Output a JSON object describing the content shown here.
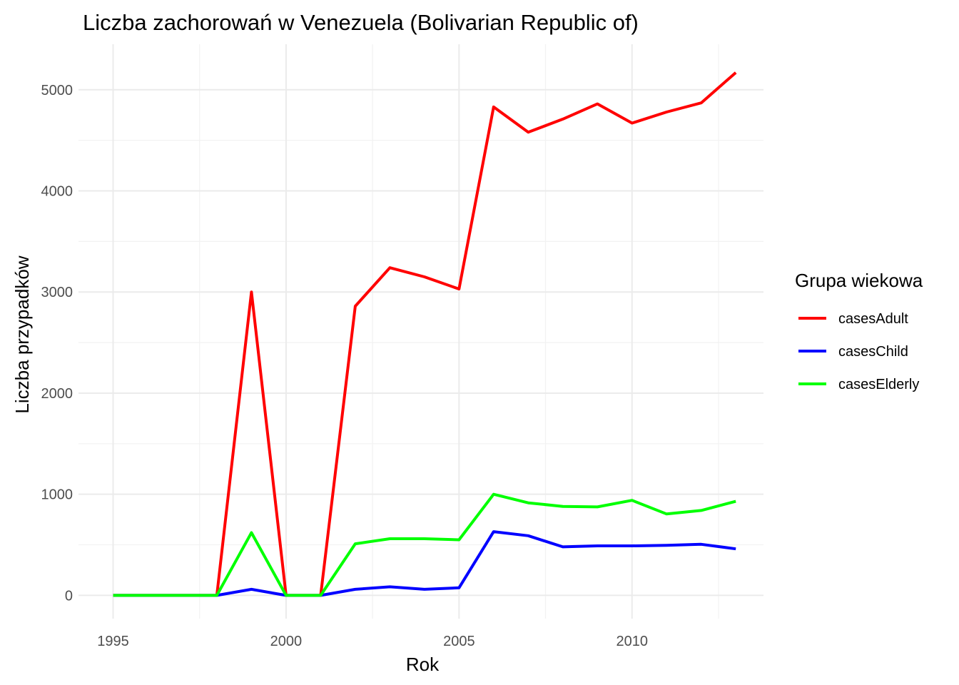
{
  "chart_data": {
    "type": "line",
    "title": "Liczba zachorowań w Venezuela (Bolivarian Republic of)",
    "xlabel": "Rok",
    "ylabel": "Liczba przypadków",
    "x": [
      1995,
      1996,
      1997,
      1998,
      1999,
      2000,
      2001,
      2002,
      2003,
      2004,
      2005,
      2006,
      2007,
      2008,
      2009,
      2010,
      2011,
      2012,
      2013
    ],
    "xlim": [
      1994,
      2013.8
    ],
    "ylim": [
      -230,
      5450
    ],
    "x_ticks": [
      1995,
      2000,
      2005,
      2010
    ],
    "x_tick_labels": [
      "1995",
      "2000",
      "2005",
      "2010"
    ],
    "y_ticks": [
      0,
      1000,
      2000,
      3000,
      4000,
      5000
    ],
    "y_tick_labels": [
      "0",
      "1000",
      "2000",
      "3000",
      "4000",
      "5000"
    ],
    "grid": true,
    "legend": {
      "title": "Grupa wiekowa",
      "position": "right"
    },
    "series": [
      {
        "name": "casesAdult",
        "color": "#ff0000",
        "values": [
          0,
          0,
          0,
          0,
          3000,
          0,
          0,
          2860,
          3240,
          3150,
          3030,
          4830,
          4580,
          4710,
          4860,
          4670,
          4780,
          4870,
          5170
        ]
      },
      {
        "name": "casesChild",
        "color": "#0000ff",
        "values": [
          0,
          0,
          0,
          0,
          60,
          0,
          0,
          60,
          85,
          60,
          75,
          630,
          590,
          480,
          490,
          490,
          495,
          505,
          460
        ]
      },
      {
        "name": "casesElderly",
        "color": "#00ff00",
        "values": [
          0,
          0,
          0,
          0,
          620,
          0,
          0,
          510,
          560,
          560,
          550,
          1000,
          915,
          880,
          875,
          940,
          805,
          840,
          930
        ]
      }
    ]
  }
}
